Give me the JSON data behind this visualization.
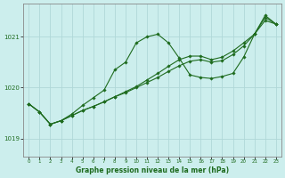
{
  "title": "Graphe pression niveau de la mer (hPa)",
  "background_color": "#cceeed",
  "line_color": "#1e6b1e",
  "grid_color": "#b0d8d8",
  "x_ticks": [
    0,
    1,
    2,
    3,
    4,
    5,
    6,
    7,
    8,
    9,
    10,
    11,
    12,
    13,
    14,
    15,
    16,
    17,
    18,
    19,
    20,
    21,
    22,
    23
  ],
  "ylim": [
    1018.65,
    1021.65
  ],
  "yticks": [
    1019,
    1020,
    1021
  ],
  "series1": [
    1019.68,
    1019.52,
    1019.28,
    1019.35,
    1019.48,
    1019.65,
    1019.8,
    1019.95,
    1020.35,
    1020.5,
    1020.88,
    1021.0,
    1021.05,
    1020.88,
    1020.58,
    1020.25,
    1020.2,
    1020.18,
    1020.22,
    1020.28,
    1020.6,
    1021.05,
    1021.42,
    1021.25
  ],
  "series2": [
    1019.68,
    1019.52,
    1019.28,
    1019.35,
    1019.45,
    1019.55,
    1019.63,
    1019.72,
    1019.82,
    1019.92,
    1020.02,
    1020.15,
    1020.28,
    1020.42,
    1020.55,
    1020.62,
    1020.62,
    1020.55,
    1020.6,
    1020.72,
    1020.88,
    1021.05,
    1021.38,
    1021.25
  ],
  "series3": [
    1019.68,
    1019.52,
    1019.28,
    1019.35,
    1019.45,
    1019.55,
    1019.63,
    1019.72,
    1019.82,
    1019.9,
    1020.0,
    1020.1,
    1020.2,
    1020.32,
    1020.43,
    1020.52,
    1020.55,
    1020.5,
    1020.53,
    1020.65,
    1020.82,
    1021.05,
    1021.32,
    1021.25
  ]
}
